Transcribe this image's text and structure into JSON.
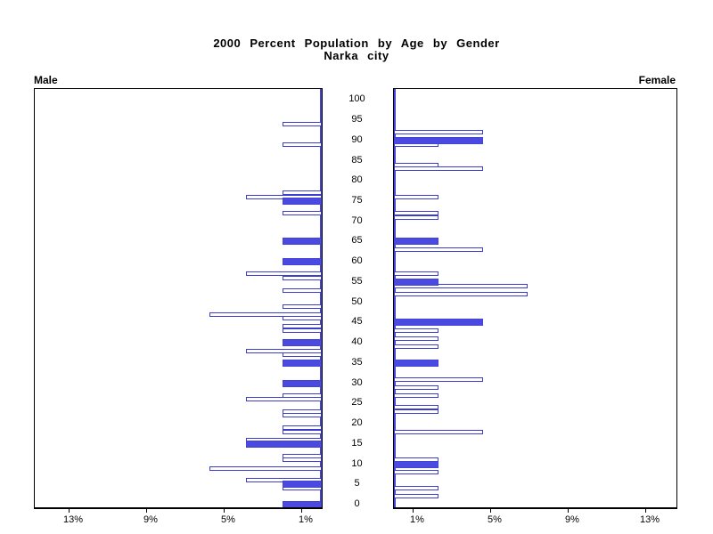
{
  "title": {
    "line1": "2000 Percent Population by Age by Gender",
    "line2": "Narka city"
  },
  "panels": {
    "left_label": "Male",
    "right_label": "Female"
  },
  "axes": {
    "age_tick_labels": [
      0,
      5,
      10,
      15,
      20,
      25,
      30,
      35,
      40,
      45,
      50,
      55,
      60,
      65,
      70,
      75,
      80,
      85,
      90,
      95,
      100
    ],
    "male_pct_ticks": [
      {
        "label": "13%",
        "pct": 13
      },
      {
        "label": "9%",
        "pct": 9
      },
      {
        "label": "5%",
        "pct": 5
      },
      {
        "label": "1%",
        "pct": 1
      }
    ],
    "female_pct_ticks": [
      {
        "label": "1%",
        "pct": 1
      },
      {
        "label": "5%",
        "pct": 5
      },
      {
        "label": "9%",
        "pct": 9
      },
      {
        "label": "13%",
        "pct": 13
      }
    ]
  },
  "colors": {
    "bar_outline": "#3c3ccf",
    "bar_fill": "#4a4ae0",
    "zero_axis_blue": "#4343d9",
    "frame": "#000000"
  },
  "chart_data": {
    "type": "bar",
    "orientation": "horizontal population pyramid",
    "title": "2000 Percent Population by Age by Gender",
    "subtitle": "Narka city",
    "x_axis": "percent of population (0 at center, increasing outward; ticks 1%, 5%, 9%, 13%)",
    "y_axis": "single year of age, 0 to 100 (labels every 5 years)",
    "note": "solid (filled) bars occur at ages that are multiples of 5; open bars are outlined only",
    "xlim_pct": 14.8,
    "series": [
      {
        "name": "Male",
        "side": "left",
        "bars": [
          {
            "age": 94,
            "pct": 2.0,
            "filled": false
          },
          {
            "age": 89,
            "pct": 2.0,
            "filled": false
          },
          {
            "age": 77,
            "pct": 2.0,
            "filled": false
          },
          {
            "age": 76,
            "pct": 3.9,
            "filled": false
          },
          {
            "age": 75,
            "pct": 2.0,
            "filled": true
          },
          {
            "age": 72,
            "pct": 2.0,
            "filled": false
          },
          {
            "age": 65,
            "pct": 2.0,
            "filled": true
          },
          {
            "age": 60,
            "pct": 2.0,
            "filled": true
          },
          {
            "age": 57,
            "pct": 3.9,
            "filled": false
          },
          {
            "age": 56,
            "pct": 2.0,
            "filled": false
          },
          {
            "age": 53,
            "pct": 2.0,
            "filled": false
          },
          {
            "age": 49,
            "pct": 2.0,
            "filled": false
          },
          {
            "age": 47,
            "pct": 5.8,
            "filled": false
          },
          {
            "age": 46,
            "pct": 2.0,
            "filled": false
          },
          {
            "age": 44,
            "pct": 2.0,
            "filled": false
          },
          {
            "age": 43,
            "pct": 2.0,
            "filled": false
          },
          {
            "age": 40,
            "pct": 2.0,
            "filled": true
          },
          {
            "age": 38,
            "pct": 3.9,
            "filled": false
          },
          {
            "age": 37,
            "pct": 2.0,
            "filled": false
          },
          {
            "age": 35,
            "pct": 2.0,
            "filled": true
          },
          {
            "age": 30,
            "pct": 2.0,
            "filled": true
          },
          {
            "age": 27,
            "pct": 2.0,
            "filled": false
          },
          {
            "age": 26,
            "pct": 3.9,
            "filled": false
          },
          {
            "age": 23,
            "pct": 2.0,
            "filled": false
          },
          {
            "age": 22,
            "pct": 2.0,
            "filled": false
          },
          {
            "age": 19,
            "pct": 2.0,
            "filled": false
          },
          {
            "age": 18,
            "pct": 2.0,
            "filled": false
          },
          {
            "age": 16,
            "pct": 3.9,
            "filled": false
          },
          {
            "age": 15,
            "pct": 3.9,
            "filled": true
          },
          {
            "age": 12,
            "pct": 2.0,
            "filled": false
          },
          {
            "age": 11,
            "pct": 2.0,
            "filled": false
          },
          {
            "age": 9,
            "pct": 5.8,
            "filled": false
          },
          {
            "age": 6,
            "pct": 3.9,
            "filled": false
          },
          {
            "age": 5,
            "pct": 2.0,
            "filled": true
          },
          {
            "age": 4,
            "pct": 2.0,
            "filled": false
          },
          {
            "age": 0,
            "pct": 2.0,
            "filled": true
          }
        ]
      },
      {
        "name": "Female",
        "side": "right",
        "bars": [
          {
            "age": 92,
            "pct": 4.6,
            "filled": false
          },
          {
            "age": 90,
            "pct": 4.6,
            "filled": true
          },
          {
            "age": 89,
            "pct": 2.3,
            "filled": false
          },
          {
            "age": 84,
            "pct": 2.3,
            "filled": false
          },
          {
            "age": 83,
            "pct": 4.6,
            "filled": false
          },
          {
            "age": 76,
            "pct": 2.3,
            "filled": false
          },
          {
            "age": 72,
            "pct": 2.3,
            "filled": false
          },
          {
            "age": 71,
            "pct": 2.3,
            "filled": false
          },
          {
            "age": 65,
            "pct": 2.3,
            "filled": true
          },
          {
            "age": 63,
            "pct": 4.6,
            "filled": false
          },
          {
            "age": 57,
            "pct": 2.3,
            "filled": false
          },
          {
            "age": 55,
            "pct": 2.3,
            "filled": true
          },
          {
            "age": 54,
            "pct": 6.9,
            "filled": false
          },
          {
            "age": 52,
            "pct": 6.9,
            "filled": false
          },
          {
            "age": 45,
            "pct": 4.6,
            "filled": true
          },
          {
            "age": 43,
            "pct": 2.3,
            "filled": false
          },
          {
            "age": 41,
            "pct": 2.3,
            "filled": false
          },
          {
            "age": 39,
            "pct": 2.3,
            "filled": false
          },
          {
            "age": 35,
            "pct": 2.3,
            "filled": true
          },
          {
            "age": 31,
            "pct": 4.6,
            "filled": false
          },
          {
            "age": 29,
            "pct": 2.3,
            "filled": false
          },
          {
            "age": 27,
            "pct": 2.3,
            "filled": false
          },
          {
            "age": 24,
            "pct": 2.3,
            "filled": false
          },
          {
            "age": 23,
            "pct": 2.3,
            "filled": false
          },
          {
            "age": 18,
            "pct": 4.6,
            "filled": false
          },
          {
            "age": 11,
            "pct": 2.3,
            "filled": false
          },
          {
            "age": 10,
            "pct": 2.3,
            "filled": true
          },
          {
            "age": 8,
            "pct": 2.3,
            "filled": false
          },
          {
            "age": 4,
            "pct": 2.3,
            "filled": false
          },
          {
            "age": 2,
            "pct": 2.3,
            "filled": false
          }
        ]
      }
    ]
  }
}
